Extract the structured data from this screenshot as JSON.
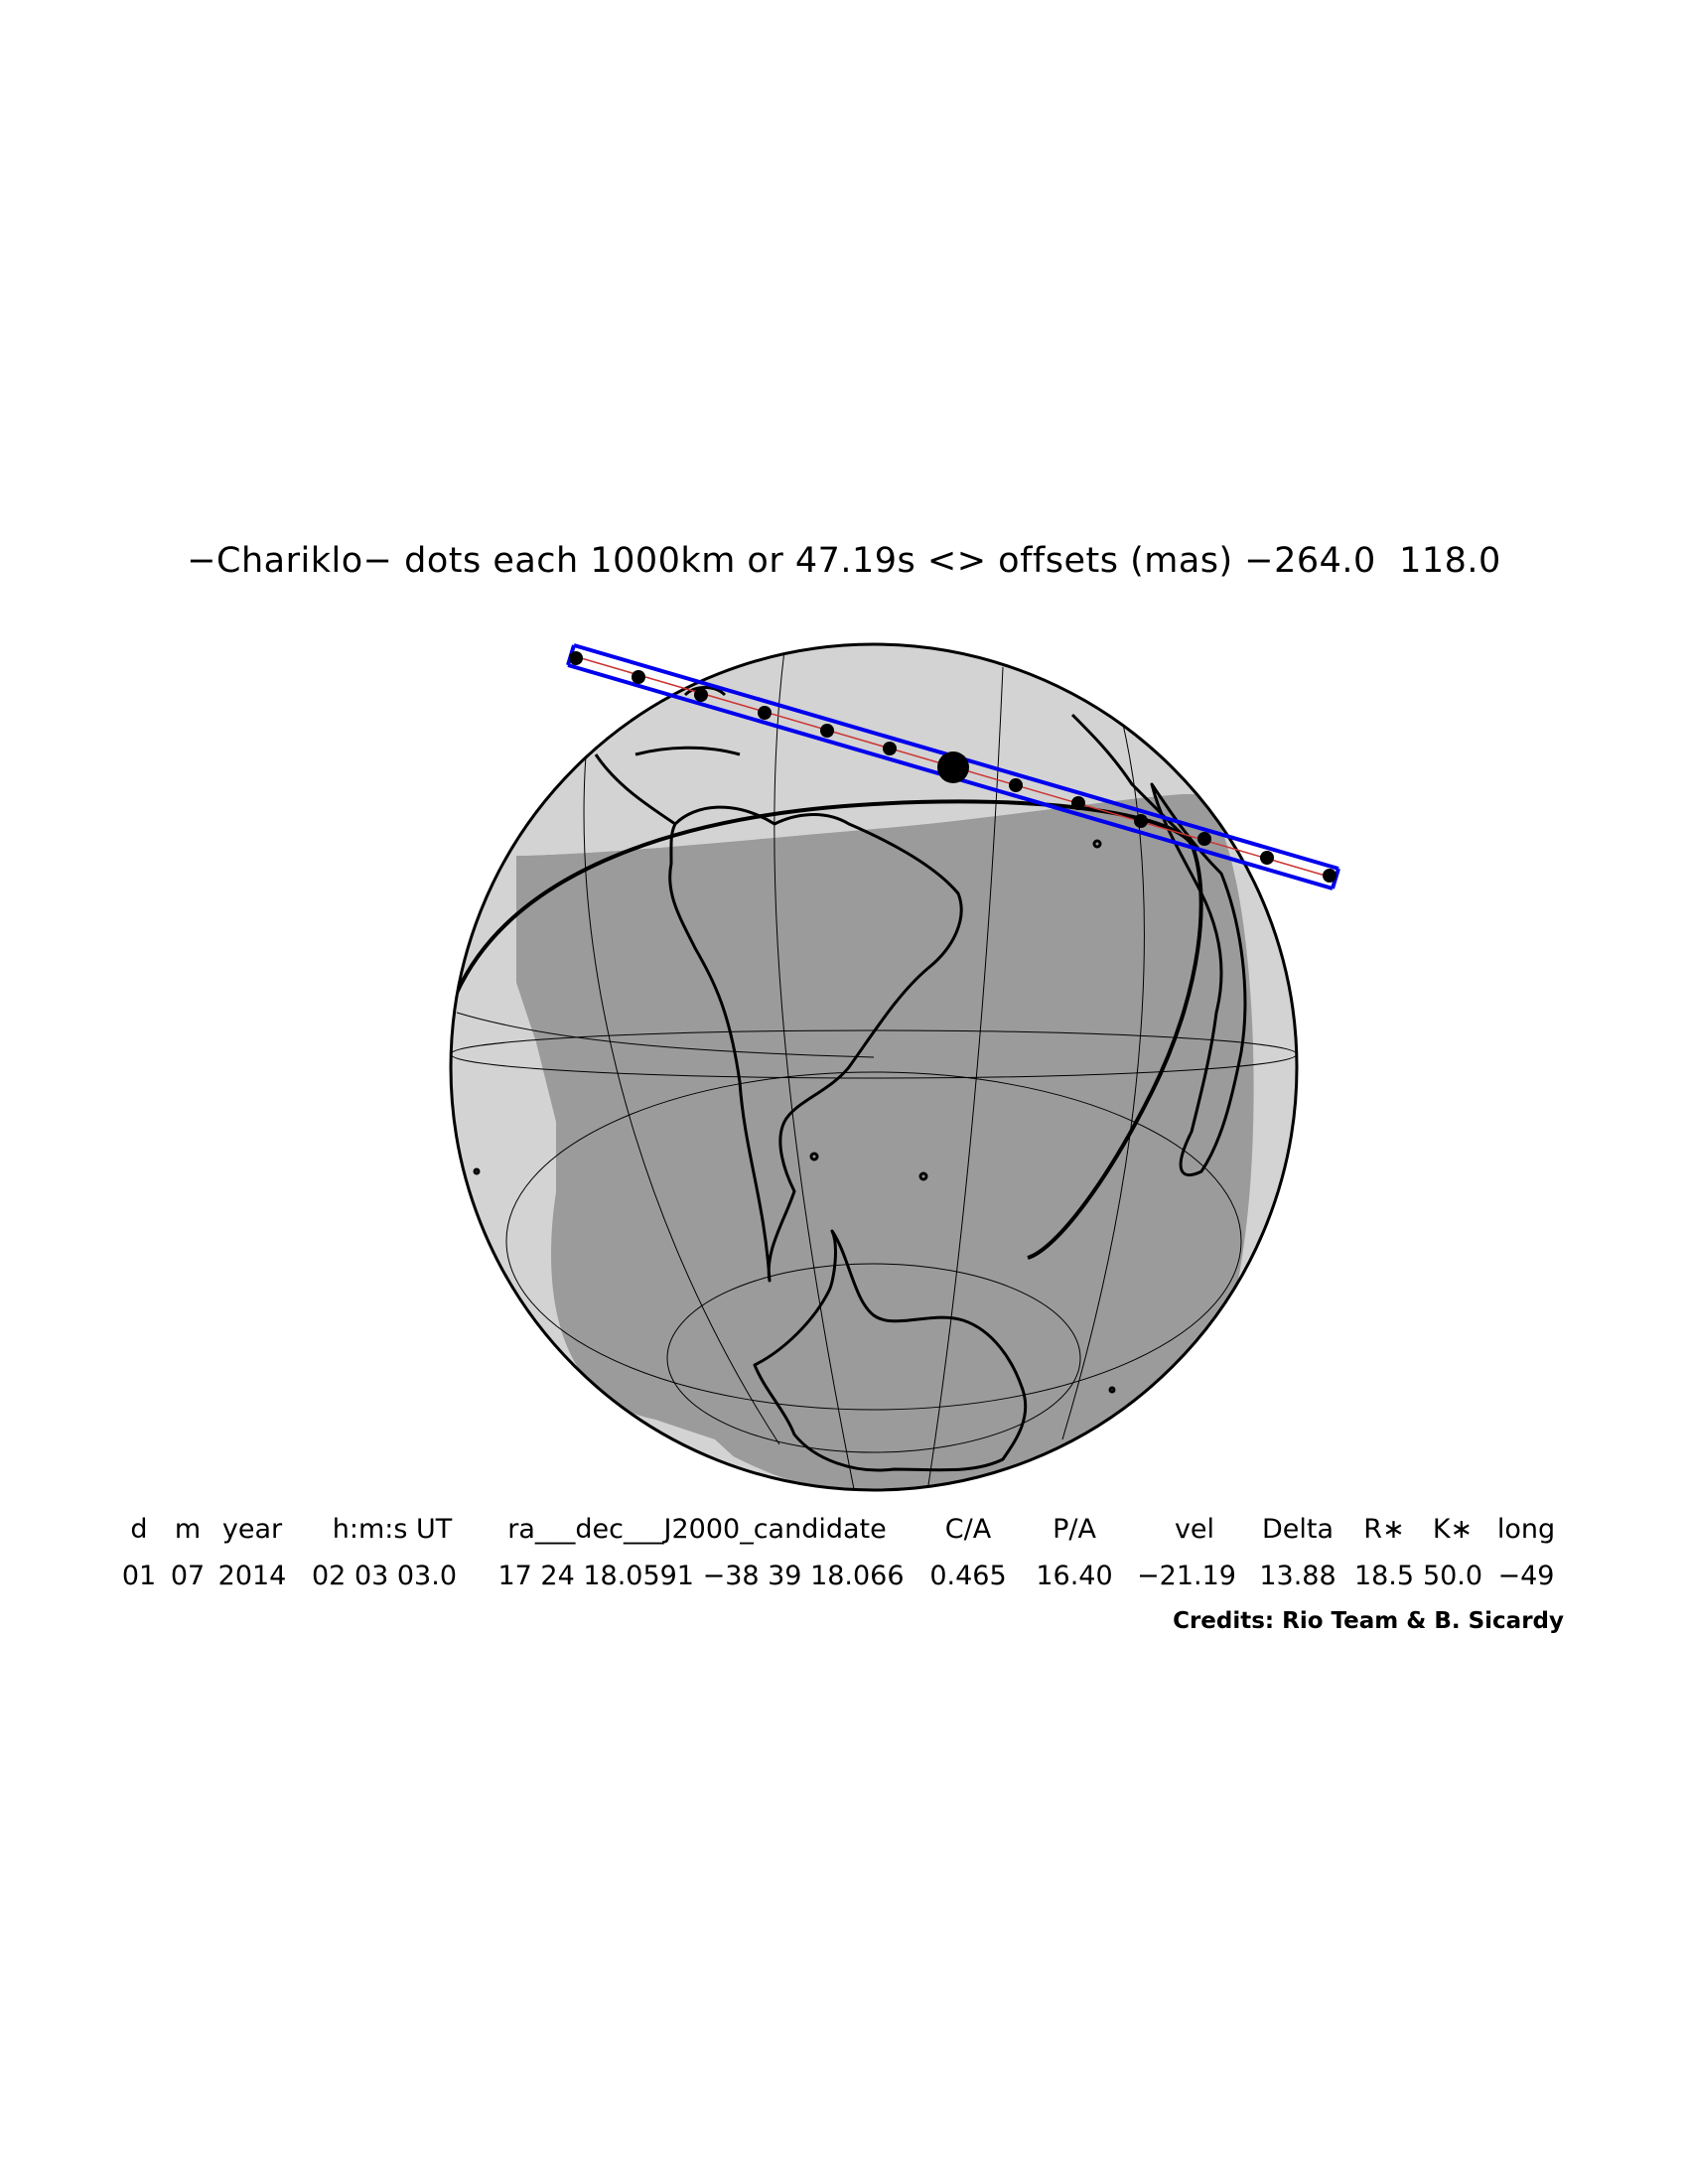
{
  "title": "−Chariklo− dots each 1000km or 47.19s <> offsets (mas) −264.0  118.0",
  "map": {
    "object": "Chariklo",
    "dot_spacing_km": 1000,
    "dot_spacing_s": 47.19,
    "offsets_mas": [
      -264.0,
      118.0
    ],
    "colors": {
      "night": "#9b9b9b",
      "twilight": "#d3d3d3",
      "shadow_path": "#0000ee",
      "centre_line": "#cc3333",
      "coastline": "#000000",
      "graticule": "#000000"
    },
    "elements": [
      "globe",
      "graticule",
      "coastlines",
      "day-night-terminator",
      "shadow-path",
      "shadow-dots"
    ]
  },
  "table": {
    "headers": [
      "d",
      "m",
      "year",
      "h:m:s UT",
      "ra___dec___J2000_candidate",
      "C/A",
      "P/A",
      "vel",
      "Delta",
      "R∗",
      "K∗",
      "long"
    ],
    "values": [
      "01",
      "07",
      "2014",
      "02 03 03.0",
      "17 24 18.0591 −38 39 18.066",
      "0.465",
      "16.40",
      "−21.19",
      "13.88",
      "18.5",
      "50.0",
      "−49"
    ]
  },
  "credits": "Credits: Rio Team & B. Sicardy"
}
